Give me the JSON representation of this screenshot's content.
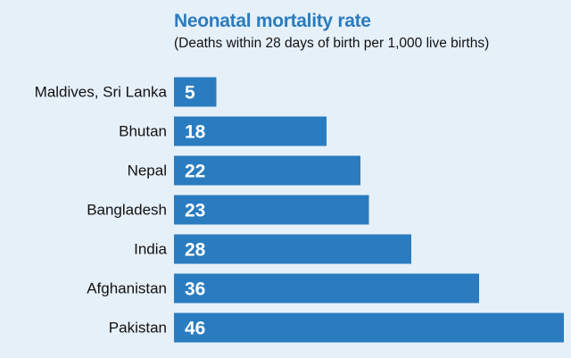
{
  "colors": {
    "background": "#e6f0f9",
    "bar": "#2a7cc0",
    "title": "#2a7cc0",
    "value_text": "#ffffff"
  },
  "chart_data": {
    "type": "bar",
    "orientation": "horizontal",
    "title": "Neonatal mortality rate",
    "subtitle": "(Deaths within 28 days of birth per 1,000 live births)",
    "categories": [
      "Maldives, Sri Lanka",
      "Bhutan",
      "Nepal",
      "Bangladesh",
      "India",
      "Afghanistan",
      "Pakistan"
    ],
    "values": [
      5,
      18,
      22,
      23,
      28,
      36,
      46
    ],
    "xlim": [
      0,
      46
    ],
    "grid": false,
    "legend": "none"
  }
}
